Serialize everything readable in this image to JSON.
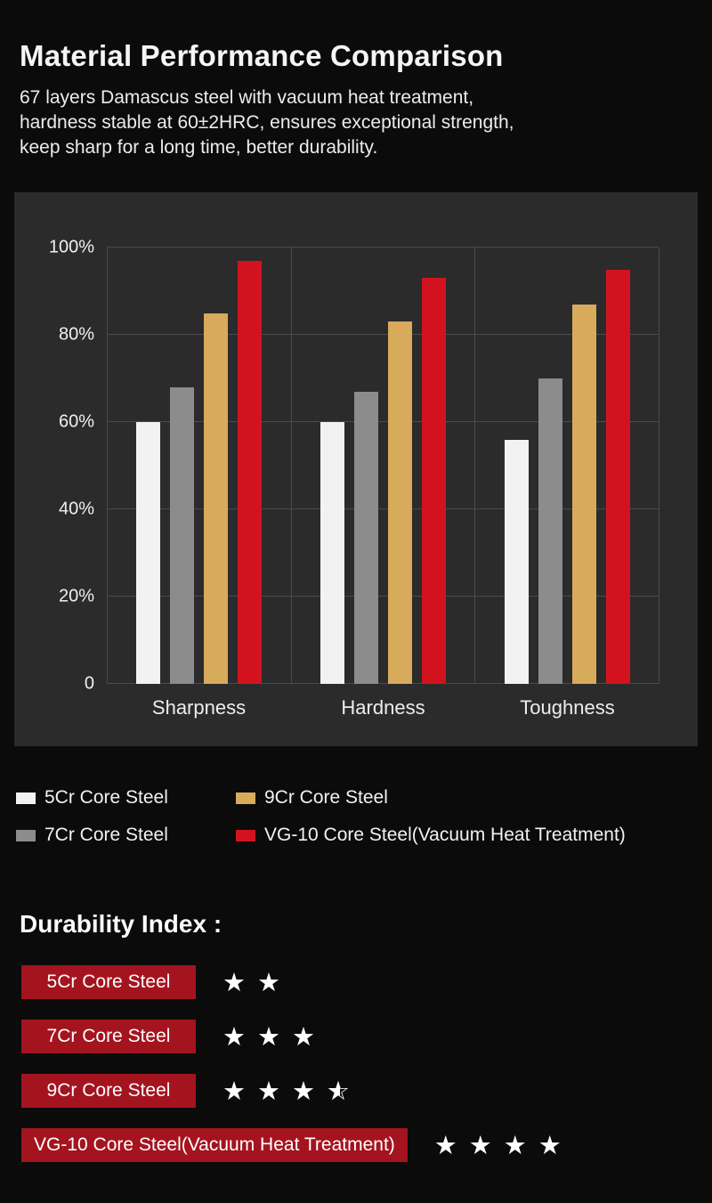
{
  "page": {
    "title": "Material Performance Comparison",
    "subtitle_lines": [
      "67 layers Damascus steel with vacuum heat treatment,",
      "hardness stable at 60±2HRC, ensures exceptional strength,",
      "keep sharp for a long time, better durability."
    ]
  },
  "chart_data": {
    "type": "bar",
    "title": "",
    "categories": [
      "Sharpness",
      "Hardness",
      "Toughness"
    ],
    "series": [
      {
        "name": "5Cr Core Steel",
        "color": "#f2f2f2",
        "values": [
          60,
          60,
          56
        ]
      },
      {
        "name": "7Cr Core Steel",
        "color": "#8c8c8c",
        "values": [
          68,
          67,
          70
        ]
      },
      {
        "name": "9Cr Core Steel",
        "color": "#d8aa5c",
        "values": [
          85,
          83,
          87
        ]
      },
      {
        "name": "VG-10 Core Steel(Vacuum Heat Treatment)",
        "color": "#d2131f",
        "values": [
          97,
          93,
          95
        ]
      }
    ],
    "y_ticks": [
      "0",
      "20%",
      "40%",
      "60%",
      "80%",
      "100%"
    ],
    "ylim": [
      0,
      100
    ],
    "grid": true,
    "legend_position": "below",
    "panel_background": "#2b2b2b"
  },
  "legend": {
    "items": [
      {
        "label": "5Cr Core Steel",
        "color": "#f2f2f2"
      },
      {
        "label": "9Cr Core Steel",
        "color": "#d8aa5c"
      },
      {
        "label": "7Cr Core Steel",
        "color": "#8c8c8c"
      },
      {
        "label": "VG-10 Core Steel(Vacuum Heat Treatment)",
        "color": "#d2131f"
      }
    ]
  },
  "durability": {
    "heading": "Durability Index :",
    "badge_color": "#a4141f",
    "rows": [
      {
        "label": "5Cr Core Steel",
        "stars": 2
      },
      {
        "label": "7Cr Core Steel",
        "stars": 3
      },
      {
        "label": "9Cr Core Steel",
        "stars": 3.5
      },
      {
        "label": "VG-10 Core Steel(Vacuum Heat Treatment)",
        "stars": 4
      }
    ]
  }
}
